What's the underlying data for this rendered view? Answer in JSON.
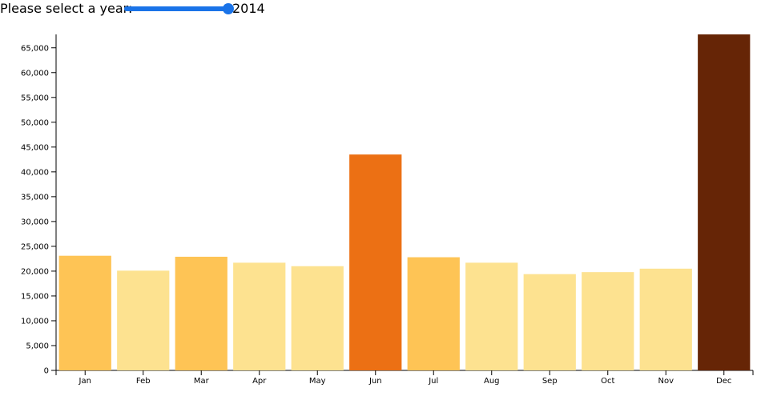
{
  "controls": {
    "label": "Please select a year:",
    "year": "2014",
    "year_min": 2004,
    "year_max": 2014,
    "slider_color": "#1a73e8"
  },
  "chart_data": {
    "type": "bar",
    "title": "",
    "xlabel": "",
    "ylabel": "",
    "categories": [
      "Jan",
      "Feb",
      "Mar",
      "Apr",
      "May",
      "Jun",
      "Jul",
      "Aug",
      "Sep",
      "Oct",
      "Nov",
      "Dec"
    ],
    "values": [
      23100,
      20100,
      22900,
      21700,
      21000,
      43500,
      22800,
      21700,
      19400,
      19800,
      20500,
      67700
    ],
    "colors": [
      "#fec455",
      "#fde290",
      "#fec455",
      "#fde290",
      "#fde290",
      "#ec7014",
      "#fec455",
      "#fde290",
      "#fde290",
      "#fde290",
      "#fde290",
      "#662506"
    ],
    "ylim": [
      0,
      67700
    ],
    "yticks": [
      0,
      5000,
      10000,
      15000,
      20000,
      25000,
      30000,
      35000,
      40000,
      45000,
      50000,
      55000,
      60000,
      65000
    ],
    "ytick_labels": [
      "0",
      "5,000",
      "10,000",
      "15,000",
      "20,000",
      "25,000",
      "30,000",
      "35,000",
      "40,000",
      "45,000",
      "50,000",
      "55,000",
      "60,000",
      "65,000"
    ],
    "grid": false,
    "legend": "none"
  }
}
